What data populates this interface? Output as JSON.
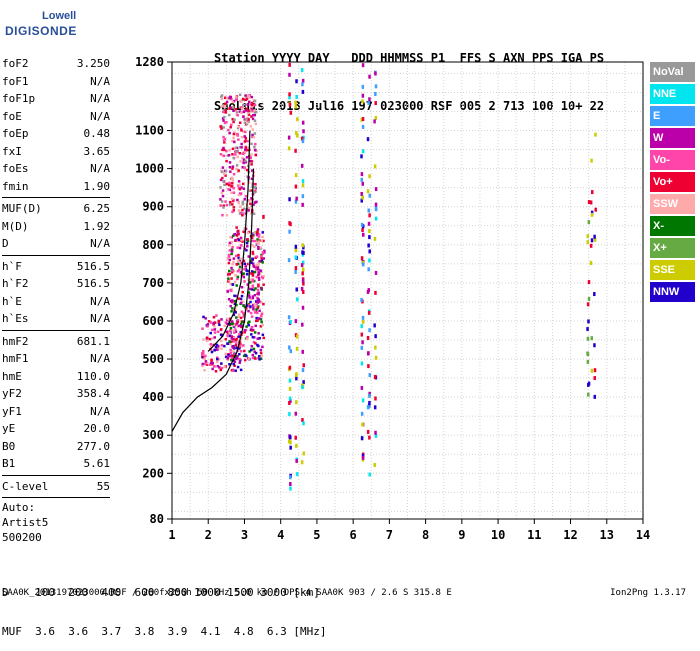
{
  "logo": {
    "line1": "Lowell",
    "line2": "DIGISONDE"
  },
  "header": {
    "line1": "Station YYYY DAY   DDD HHMMSS P1  FFS S AXN PPS IGA PS",
    "line2": "SaoLuis 2013 Jul16 197 023000 RSF 005 2 713 100 10+ 22"
  },
  "params": {
    "group1": [
      {
        "label": "foF2",
        "value": "3.250"
      },
      {
        "label": "foF1",
        "value": "N/A"
      },
      {
        "label": "foF1p",
        "value": "N/A"
      },
      {
        "label": "foE",
        "value": "N/A"
      },
      {
        "label": "foEp",
        "value": "0.48"
      },
      {
        "label": "fxI",
        "value": "3.65"
      },
      {
        "label": "foEs",
        "value": "N/A"
      },
      {
        "label": "fmin",
        "value": "1.90"
      }
    ],
    "group2": [
      {
        "label": "MUF(D)",
        "value": "6.25"
      },
      {
        "label": "M(D)",
        "value": "1.92"
      },
      {
        "label": "D",
        "value": "N/A"
      }
    ],
    "group3": [
      {
        "label": "h`F",
        "value": "516.5"
      },
      {
        "label": "h`F2",
        "value": "516.5"
      },
      {
        "label": "h`E",
        "value": "N/A"
      },
      {
        "label": "h`Es",
        "value": "N/A"
      }
    ],
    "group4": [
      {
        "label": "hmF2",
        "value": "681.1"
      },
      {
        "label": "hmF1",
        "value": "N/A"
      },
      {
        "label": "hmE",
        "value": "110.0"
      },
      {
        "label": "yF2",
        "value": "358.4"
      },
      {
        "label": "yF1",
        "value": "N/A"
      },
      {
        "label": "yE",
        "value": "20.0"
      },
      {
        "label": "B0",
        "value": "277.0"
      },
      {
        "label": "B1",
        "value": "5.61"
      }
    ],
    "clevel": {
      "label": "C-level",
      "value": "55"
    },
    "auto": [
      "Auto:",
      "Artist5",
      "500200"
    ]
  },
  "legend": [
    {
      "label": "NoVal",
      "color": "#999999"
    },
    {
      "label": "NNE",
      "color": "#00e5ee"
    },
    {
      "label": "E",
      "color": "#3f9fff"
    },
    {
      "label": "W",
      "color": "#bb00aa"
    },
    {
      "label": "Vo-",
      "color": "#ff44aa"
    },
    {
      "label": "Vo+",
      "color": "#ee0033"
    },
    {
      "label": "SSW",
      "color": "#ffaaaa"
    },
    {
      "label": "X-",
      "color": "#007700"
    },
    {
      "label": "X+",
      "color": "#66aa44"
    },
    {
      "label": "SSE",
      "color": "#cccc00"
    },
    {
      "label": "NNW",
      "color": "#2200cc"
    }
  ],
  "dtable": {
    "line1": "D    100  200  400  600  800 1000 1500 3000 [km]",
    "line2": "MUF  3.6  3.6  3.7  3.8  3.9  4.1  4.8  6.3 [MHz]"
  },
  "footer": "SAA0K_2013197023000.RSF / 260fx256h 50 kHz 5.0 km / DPS-4 SAA0K 903 / 2.6 S 315.8 E",
  "version": "Ion2Png 1.3.17",
  "chart_data": {
    "type": "scatter",
    "title": "",
    "xlabel": "",
    "ylabel": "",
    "xlim": [
      1,
      14
    ],
    "ylim": [
      80,
      1280
    ],
    "xticks": [
      1,
      2,
      3,
      4,
      5,
      6,
      7,
      8,
      9,
      10,
      11,
      12,
      13,
      14
    ],
    "yticks": [
      80,
      200,
      300,
      400,
      500,
      600,
      700,
      800,
      900,
      1000,
      1100,
      1280
    ],
    "grid": true,
    "legend_placement": "right",
    "profile_curve": {
      "color": "#000000",
      "x": [
        1.0,
        1.3,
        1.7,
        2.1,
        2.5,
        2.8,
        3.0,
        3.12,
        3.2,
        3.25
      ],
      "y": [
        310,
        360,
        400,
        425,
        460,
        520,
        600,
        700,
        850,
        1000
      ]
    },
    "trace_curve": {
      "color": "#000000",
      "x": [
        2.0,
        2.4,
        2.7,
        2.9,
        3.0,
        3.1,
        3.15
      ],
      "y": [
        520,
        560,
        620,
        700,
        800,
        950,
        1100
      ]
    },
    "echo_regions": [
      {
        "xmin": 1.8,
        "xmax": 2.9,
        "ymin": 470,
        "ymax": 620,
        "direction": "W"
      },
      {
        "xmin": 2.5,
        "xmax": 3.5,
        "ymin": 500,
        "ymax": 850,
        "direction": "Vo-"
      },
      {
        "xmin": 2.3,
        "xmax": 3.3,
        "ymin": 880,
        "ymax": 1200,
        "direction": "SSW"
      },
      {
        "xmin": 3.1,
        "xmax": 3.6,
        "ymin": 620,
        "ymax": 900,
        "direction": "Vo+"
      },
      {
        "xmin": 6.1,
        "xmax": 6.7,
        "ymin": 200,
        "ymax": 1280,
        "direction": "NNW"
      },
      {
        "xmin": 4.1,
        "xmax": 4.7,
        "ymin": 150,
        "ymax": 1280,
        "direction": "NNW"
      },
      {
        "xmin": 12.4,
        "xmax": 12.7,
        "ymin": 400,
        "ymax": 1100,
        "direction": "SSE"
      }
    ]
  }
}
